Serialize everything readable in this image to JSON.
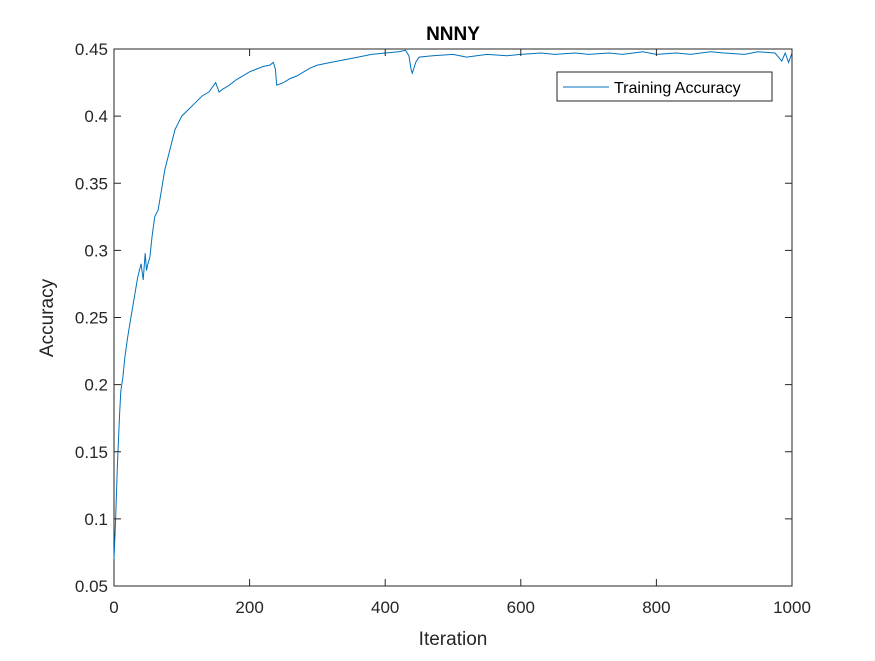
{
  "colors": {
    "series": "#0072BD",
    "axis": "#262626",
    "background": "#ffffff"
  },
  "chart_data": {
    "type": "line",
    "title": "NNNY",
    "xlabel": "Iteration",
    "ylabel": "Accuracy",
    "xlim": [
      0,
      1000
    ],
    "ylim": [
      0.05,
      0.45
    ],
    "xticks": [
      0,
      200,
      400,
      600,
      800,
      1000
    ],
    "yticks": [
      0.05,
      0.1,
      0.15,
      0.2,
      0.25,
      0.3,
      0.35,
      0.4,
      0.45
    ],
    "xtick_labels": [
      "0",
      "200",
      "400",
      "600",
      "800",
      "1000"
    ],
    "ytick_labels": [
      "0.05",
      "0.1",
      "0.15",
      "0.2",
      "0.25",
      "0.3",
      "0.35",
      "0.4",
      "0.45"
    ],
    "grid": false,
    "legend_position": "top-right",
    "series": [
      {
        "name": "Training Accuracy",
        "x": [
          0,
          2,
          5,
          8,
          10,
          13,
          16,
          20,
          25,
          30,
          35,
          40,
          43,
          46,
          48,
          50,
          53,
          56,
          60,
          65,
          70,
          75,
          80,
          85,
          90,
          95,
          100,
          110,
          120,
          130,
          140,
          150,
          155,
          160,
          170,
          180,
          190,
          200,
          210,
          220,
          230,
          235,
          238,
          240,
          250,
          260,
          270,
          280,
          290,
          300,
          320,
          340,
          360,
          380,
          400,
          420,
          430,
          435,
          438,
          440,
          445,
          450,
          470,
          500,
          520,
          550,
          580,
          600,
          630,
          650,
          680,
          700,
          730,
          750,
          780,
          800,
          830,
          850,
          880,
          900,
          930,
          950,
          975,
          985,
          990,
          995,
          1000
        ],
        "y": [
          0.07,
          0.095,
          0.14,
          0.175,
          0.195,
          0.205,
          0.22,
          0.235,
          0.25,
          0.265,
          0.28,
          0.29,
          0.278,
          0.298,
          0.285,
          0.29,
          0.295,
          0.31,
          0.325,
          0.33,
          0.345,
          0.36,
          0.37,
          0.38,
          0.39,
          0.395,
          0.4,
          0.405,
          0.41,
          0.415,
          0.418,
          0.425,
          0.418,
          0.42,
          0.423,
          0.427,
          0.43,
          0.433,
          0.435,
          0.437,
          0.438,
          0.44,
          0.435,
          0.423,
          0.425,
          0.428,
          0.43,
          0.433,
          0.436,
          0.438,
          0.44,
          0.442,
          0.444,
          0.446,
          0.447,
          0.448,
          0.449,
          0.445,
          0.435,
          0.432,
          0.44,
          0.444,
          0.445,
          0.446,
          0.444,
          0.446,
          0.445,
          0.446,
          0.447,
          0.446,
          0.447,
          0.446,
          0.447,
          0.446,
          0.448,
          0.446,
          0.447,
          0.446,
          0.448,
          0.447,
          0.446,
          0.448,
          0.447,
          0.441,
          0.447,
          0.44,
          0.447
        ]
      }
    ]
  }
}
